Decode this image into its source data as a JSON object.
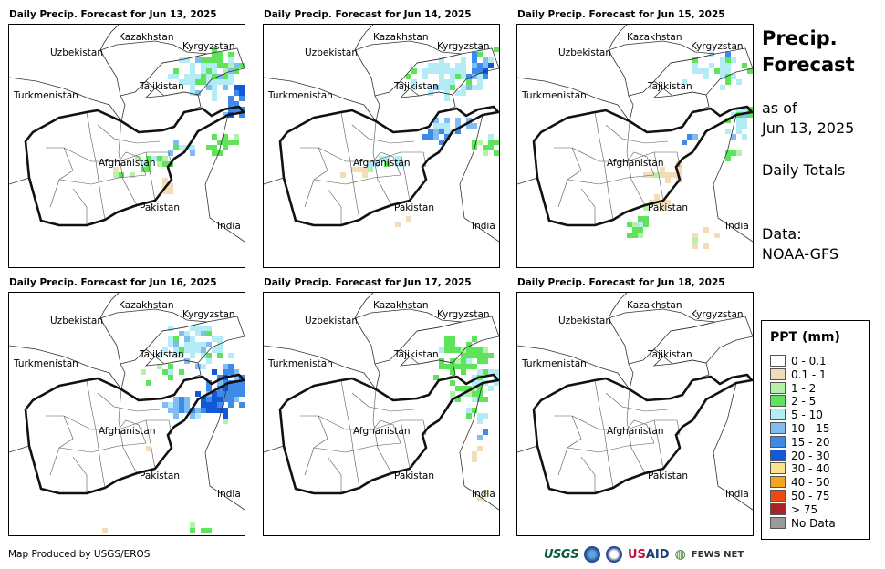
{
  "panels": [
    {
      "title": "Daily Precip. Forecast for Jun 13, 2025"
    },
    {
      "title": "Daily Precip. Forecast for Jun 14, 2025"
    },
    {
      "title": "Daily Precip. Forecast for Jun 15, 2025"
    },
    {
      "title": "Daily Precip. Forecast for Jun 16, 2025"
    },
    {
      "title": "Daily Precip. Forecast for Jun 17, 2025"
    },
    {
      "title": "Daily Precip. Forecast for Jun 18, 2025"
    }
  ],
  "map_labels": {
    "kazakhstan": "Kazakhstan",
    "kyrgyzstan": "Kyrgyzstan",
    "uzbekistan": "Uzbekistan",
    "tajikistan": "Tajikistan",
    "turkmenistan": "Turkmenistan",
    "afghanistan": "Afghanistan",
    "pakistan": "Pakistan",
    "india": "India"
  },
  "sidebar": {
    "title_line1": "Precip.",
    "title_line2": "Forecast",
    "asof_line1": "as of",
    "asof_line2": "Jun 13, 2025",
    "totals": "Daily Totals",
    "data_line1": "Data:",
    "data_line2": "NOAA-GFS"
  },
  "legend": {
    "title": "PPT (mm)",
    "items": [
      {
        "label": "0 - 0.1",
        "color": "#ffffff"
      },
      {
        "label": "0.1 - 1",
        "color": "#f3dcb8"
      },
      {
        "label": "1 - 2",
        "color": "#b3f2a8"
      },
      {
        "label": "2 - 5",
        "color": "#5fe35a"
      },
      {
        "label": "5 - 10",
        "color": "#b4ecf5"
      },
      {
        "label": "10 - 15",
        "color": "#7fbdf2"
      },
      {
        "label": "15 - 20",
        "color": "#3d8ae8"
      },
      {
        "label": "20 - 30",
        "color": "#1358d6"
      },
      {
        "label": "30 - 40",
        "color": "#fbe38a"
      },
      {
        "label": "40 - 50",
        "color": "#f6a31e"
      },
      {
        "label": "50 - 75",
        "color": "#ee4a10"
      },
      {
        "label": "> 75",
        "color": "#a82424"
      },
      {
        "label": "No Data",
        "color": "#9a9a9a"
      }
    ]
  },
  "footer": {
    "credit": "Map Produced by USGS/EROS",
    "logo_usgs": "USGS",
    "logo_usaid_us": "US",
    "logo_usaid_aid": "AID",
    "logo_fews": "FEWS NET"
  }
}
